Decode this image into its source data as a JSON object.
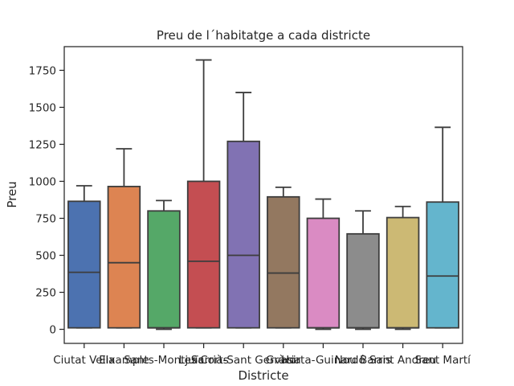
{
  "chart_data": {
    "type": "box",
    "title": "Preu de l´habitatge a cada districte",
    "xlabel": "Districte",
    "ylabel": "Preu",
    "ylim": [
      -95,
      1910
    ],
    "yticks": [
      0,
      250,
      500,
      750,
      1000,
      1250,
      1500,
      1750
    ],
    "grid": false,
    "categories": [
      "Ciutat Vella",
      "Eixample",
      "Sants-Montjuïc",
      "Les Corts",
      "Sarrià-Sant Gervasi",
      "Gràcia",
      "Horta-Guinardó",
      "Nou Barris",
      "Sant Andreu",
      "Sant Martí"
    ],
    "colors": [
      "#4c72b0",
      "#dd8452",
      "#55a868",
      "#c44e52",
      "#8172b3",
      "#937860",
      "#da8bc3",
      "#8c8c8c",
      "#ccb974",
      "#64b5cd"
    ],
    "boxes": [
      {
        "whislo": 10,
        "q1": 10,
        "med": 385,
        "q3": 865,
        "whishi": 970
      },
      {
        "whislo": 10,
        "q1": 10,
        "med": 450,
        "q3": 965,
        "whishi": 1220
      },
      {
        "whislo": 0,
        "q1": 10,
        "med": 10,
        "q3": 800,
        "whishi": 870
      },
      {
        "whislo": 10,
        "q1": 10,
        "med": 460,
        "q3": 1000,
        "whishi": 1820
      },
      {
        "whislo": 10,
        "q1": 10,
        "med": 500,
        "q3": 1270,
        "whishi": 1600
      },
      {
        "whislo": 10,
        "q1": 10,
        "med": 380,
        "q3": 895,
        "whishi": 960
      },
      {
        "whislo": 0,
        "q1": 10,
        "med": 10,
        "q3": 750,
        "whishi": 880
      },
      {
        "whislo": 0,
        "q1": 10,
        "med": 10,
        "q3": 645,
        "whishi": 800
      },
      {
        "whislo": 0,
        "q1": 10,
        "med": 10,
        "q3": 755,
        "whishi": 830
      },
      {
        "whislo": 10,
        "q1": 10,
        "med": 360,
        "q3": 860,
        "whishi": 1365
      }
    ]
  }
}
